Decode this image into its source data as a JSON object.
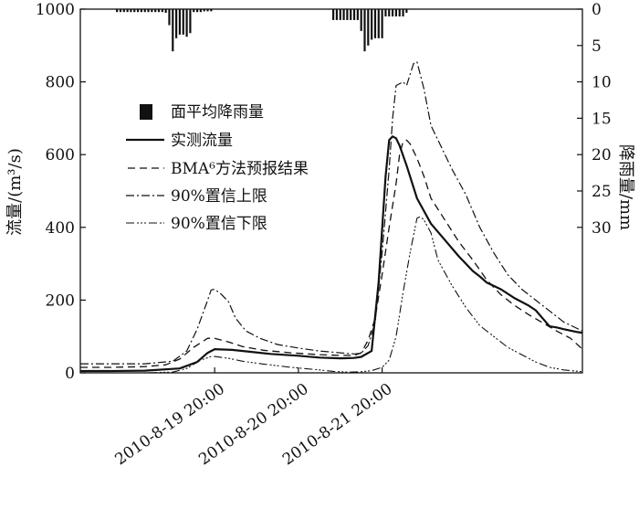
{
  "chart_data": {
    "type": "line",
    "x_ticks": [
      "2010-8-19 20:00",
      "2010-8-20 20:00",
      "2010-8-21 20:00"
    ],
    "left_axis": {
      "label": "流量/(m³/s)",
      "ylim": [
        0,
        1000
      ],
      "ticks": [
        "0",
        "200",
        "400",
        "600",
        "800",
        "1000"
      ]
    },
    "right_axis": {
      "label": "降雨量/mm",
      "ylim": [
        0,
        50
      ],
      "inverted": true,
      "ticks": [
        "0",
        "5",
        "10",
        "15",
        "20",
        "25",
        "30"
      ]
    },
    "legend": {
      "placement": "upper-left",
      "items": [
        {
          "key": "rain",
          "label": "面平均降雨量"
        },
        {
          "key": "obs",
          "label": "实测流量"
        },
        {
          "key": "bma",
          "label": "BMA⁶方法预报结果"
        },
        {
          "key": "upper",
          "label": "90%置信上限"
        },
        {
          "key": "lower",
          "label": "90%置信下限"
        }
      ]
    },
    "x_unit": "hours from 2010-8-19 20:00",
    "rain_bars": [
      {
        "x": -28,
        "value": 0.4
      },
      {
        "x": -27,
        "value": 0.4
      },
      {
        "x": -26,
        "value": 0.4
      },
      {
        "x": -25,
        "value": 0.4
      },
      {
        "x": -24,
        "value": 0.4
      },
      {
        "x": -23,
        "value": 0.4
      },
      {
        "x": -22,
        "value": 0.4
      },
      {
        "x": -21,
        "value": 0.4
      },
      {
        "x": -20,
        "value": 0.4
      },
      {
        "x": -19,
        "value": 0.4
      },
      {
        "x": -18,
        "value": 0.4
      },
      {
        "x": -17,
        "value": 0.4
      },
      {
        "x": -16,
        "value": 0.4
      },
      {
        "x": -15,
        "value": 0.4
      },
      {
        "x": -14,
        "value": 0.5
      },
      {
        "x": -13,
        "value": 2.2
      },
      {
        "x": -12,
        "value": 5.8
      },
      {
        "x": -11,
        "value": 4.0
      },
      {
        "x": -10,
        "value": 3.5
      },
      {
        "x": -9,
        "value": 3.5
      },
      {
        "x": -8,
        "value": 3.8
      },
      {
        "x": -7,
        "value": 3.3
      },
      {
        "x": -6,
        "value": 0.4
      },
      {
        "x": -5,
        "value": 0.4
      },
      {
        "x": -4,
        "value": 0.4
      },
      {
        "x": -3,
        "value": 0.3
      },
      {
        "x": -2,
        "value": 0.3
      },
      {
        "x": -1,
        "value": 0.3
      },
      {
        "x": 34,
        "value": 1.5
      },
      {
        "x": 35,
        "value": 1.5
      },
      {
        "x": 36,
        "value": 1.5
      },
      {
        "x": 37,
        "value": 1.5
      },
      {
        "x": 38,
        "value": 1.5
      },
      {
        "x": 39,
        "value": 1.5
      },
      {
        "x": 40,
        "value": 1.5
      },
      {
        "x": 41,
        "value": 1.5
      },
      {
        "x": 42,
        "value": 3.0
      },
      {
        "x": 43,
        "value": 5.8
      },
      {
        "x": 44,
        "value": 5.0
      },
      {
        "x": 45,
        "value": 4.2
      },
      {
        "x": 46,
        "value": 4.0
      },
      {
        "x": 47,
        "value": 4.0
      },
      {
        "x": 48,
        "value": 4.0
      },
      {
        "x": 49,
        "value": 1.0
      },
      {
        "x": 50,
        "value": 1.0
      },
      {
        "x": 51,
        "value": 1.0
      },
      {
        "x": 52,
        "value": 1.0
      },
      {
        "x": 53,
        "value": 1.0
      },
      {
        "x": 54,
        "value": 1.0
      },
      {
        "x": 55,
        "value": 0.5
      }
    ],
    "series": [
      {
        "name": "实测流量",
        "key": "obs",
        "points": [
          [
            -38.5,
            5
          ],
          [
            -30,
            5
          ],
          [
            -20,
            6
          ],
          [
            -10,
            12
          ],
          [
            -5,
            30
          ],
          [
            -2,
            55
          ],
          [
            0,
            65
          ],
          [
            5,
            63
          ],
          [
            10,
            58
          ],
          [
            16,
            52
          ],
          [
            24,
            47
          ],
          [
            30,
            42
          ],
          [
            36,
            40
          ],
          [
            40,
            41
          ],
          [
            42,
            44
          ],
          [
            45,
            60
          ],
          [
            47,
            250
          ],
          [
            49,
            540
          ],
          [
            50,
            640
          ],
          [
            51,
            650
          ],
          [
            52,
            645
          ],
          [
            53,
            625
          ],
          [
            55,
            570
          ],
          [
            58,
            480
          ],
          [
            62,
            410
          ],
          [
            66,
            365
          ],
          [
            70,
            320
          ],
          [
            74,
            280
          ],
          [
            76,
            265
          ],
          [
            78,
            248
          ],
          [
            82,
            230
          ],
          [
            86,
            205
          ],
          [
            88,
            195
          ],
          [
            90,
            185
          ],
          [
            92,
            172
          ],
          [
            94,
            150
          ],
          [
            96,
            128
          ],
          [
            98,
            125
          ],
          [
            100,
            120
          ],
          [
            104,
            112
          ],
          [
            105.4,
            110
          ]
        ]
      },
      {
        "name": "BMA⁶方法预报结果",
        "key": "bma",
        "points": [
          [
            -38.5,
            15
          ],
          [
            -30,
            15
          ],
          [
            -20,
            17
          ],
          [
            -14,
            22
          ],
          [
            -10,
            38
          ],
          [
            -6,
            70
          ],
          [
            -2,
            95
          ],
          [
            0,
            95
          ],
          [
            4,
            85
          ],
          [
            8,
            72
          ],
          [
            14,
            62
          ],
          [
            22,
            55
          ],
          [
            30,
            50
          ],
          [
            36,
            48
          ],
          [
            40,
            48
          ],
          [
            42,
            55
          ],
          [
            44,
            90
          ],
          [
            46,
            150
          ],
          [
            48,
            270
          ],
          [
            50,
            400
          ],
          [
            52,
            520
          ],
          [
            53,
            600
          ],
          [
            54,
            635
          ],
          [
            55,
            640
          ],
          [
            56,
            630
          ],
          [
            58,
            590
          ],
          [
            60,
            540
          ],
          [
            62,
            480
          ],
          [
            66,
            420
          ],
          [
            70,
            360
          ],
          [
            74,
            310
          ],
          [
            78,
            255
          ],
          [
            82,
            215
          ],
          [
            86,
            185
          ],
          [
            90,
            160
          ],
          [
            94,
            138
          ],
          [
            98,
            115
          ],
          [
            102,
            95
          ],
          [
            105.4,
            65
          ]
        ]
      },
      {
        "name": "90%置信上限",
        "key": "upper",
        "points": [
          [
            -38.5,
            25
          ],
          [
            -30,
            25
          ],
          [
            -20,
            25
          ],
          [
            -12,
            32
          ],
          [
            -8,
            60
          ],
          [
            -5,
            120
          ],
          [
            -2,
            200
          ],
          [
            -1,
            228
          ],
          [
            0,
            230
          ],
          [
            2,
            215
          ],
          [
            4,
            195
          ],
          [
            6,
            150
          ],
          [
            9,
            115
          ],
          [
            13,
            95
          ],
          [
            18,
            78
          ],
          [
            24,
            68
          ],
          [
            30,
            60
          ],
          [
            36,
            55
          ],
          [
            40,
            52
          ],
          [
            42,
            54
          ],
          [
            44,
            75
          ],
          [
            46,
            140
          ],
          [
            48,
            330
          ],
          [
            50,
            560
          ],
          [
            51,
            700
          ],
          [
            52,
            790
          ],
          [
            54,
            800
          ],
          [
            55,
            790
          ],
          [
            57,
            850
          ],
          [
            58,
            855
          ],
          [
            60,
            780
          ],
          [
            62,
            680
          ],
          [
            64,
            640
          ],
          [
            68,
            560
          ],
          [
            72,
            490
          ],
          [
            76,
            400
          ],
          [
            80,
            330
          ],
          [
            84,
            270
          ],
          [
            88,
            230
          ],
          [
            92,
            200
          ],
          [
            96,
            170
          ],
          [
            100,
            140
          ],
          [
            105.4,
            115
          ]
        ]
      },
      {
        "name": "90%置信下限",
        "key": "lower",
        "points": [
          [
            -38.5,
            0
          ],
          [
            -20,
            0
          ],
          [
            -12,
            2
          ],
          [
            -8,
            12
          ],
          [
            -4,
            35
          ],
          [
            -1,
            45
          ],
          [
            0,
            45
          ],
          [
            4,
            40
          ],
          [
            8,
            32
          ],
          [
            14,
            24
          ],
          [
            22,
            15
          ],
          [
            30,
            8
          ],
          [
            34,
            4
          ],
          [
            38,
            2
          ],
          [
            42,
            3
          ],
          [
            45,
            6
          ],
          [
            48,
            15
          ],
          [
            50,
            35
          ],
          [
            52,
            100
          ],
          [
            54,
            220
          ],
          [
            56,
            330
          ],
          [
            58,
            425
          ],
          [
            59,
            430
          ],
          [
            60,
            420
          ],
          [
            62,
            385
          ],
          [
            64,
            310
          ],
          [
            68,
            240
          ],
          [
            72,
            180
          ],
          [
            76,
            130
          ],
          [
            80,
            100
          ],
          [
            84,
            70
          ],
          [
            88,
            50
          ],
          [
            92,
            30
          ],
          [
            96,
            15
          ],
          [
            100,
            8
          ],
          [
            105.4,
            3
          ]
        ]
      }
    ]
  }
}
